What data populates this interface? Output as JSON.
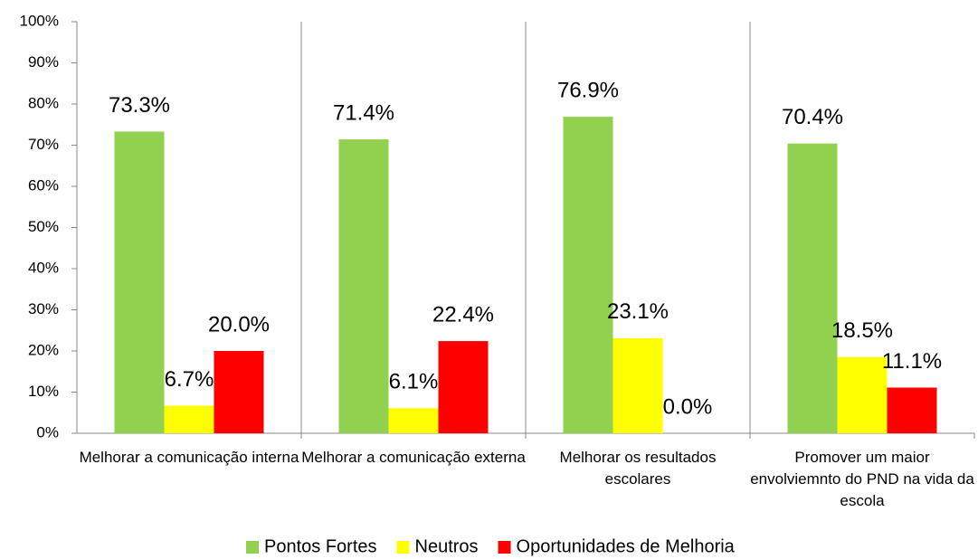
{
  "chart_data": {
    "type": "bar",
    "categories": [
      "Melhorar a comunicação interna",
      "Melhorar a comunicação externa",
      "Melhorar os resultados escolares",
      "Promover um maior envolviemnto do PND na vida da escola"
    ],
    "series": [
      {
        "name": "Pontos Fortes",
        "color": "#92d050",
        "values": [
          73.3,
          71.4,
          76.9,
          70.4
        ],
        "value_labels": [
          "73.3%",
          "71.4%",
          "76.9%",
          "70.4%"
        ]
      },
      {
        "name": "Neutros",
        "color": "#ffff00",
        "values": [
          6.7,
          6.1,
          23.1,
          18.5
        ],
        "value_labels": [
          "6.7%",
          "6.1%",
          "23.1%",
          "18.5%"
        ]
      },
      {
        "name": "Oportunidades de Melhoria",
        "color": "#ff0000",
        "values": [
          20.0,
          22.4,
          0.0,
          11.1
        ],
        "value_labels": [
          "20.0%",
          "22.4%",
          "0.0%",
          "11.1%"
        ]
      }
    ],
    "ylim": [
      0,
      100
    ],
    "yticks": [
      {
        "value": 0,
        "label": "0%"
      },
      {
        "value": 10,
        "label": "10%"
      },
      {
        "value": 20,
        "label": "20%"
      },
      {
        "value": 30,
        "label": "30%"
      },
      {
        "value": 40,
        "label": "40%"
      },
      {
        "value": 50,
        "label": "50%"
      },
      {
        "value": 60,
        "label": "60%"
      },
      {
        "value": 70,
        "label": "70%"
      },
      {
        "value": 80,
        "label": "80%"
      },
      {
        "value": 90,
        "label": "90%"
      },
      {
        "value": 100,
        "label": "100%"
      }
    ],
    "legend": "bottom"
  }
}
